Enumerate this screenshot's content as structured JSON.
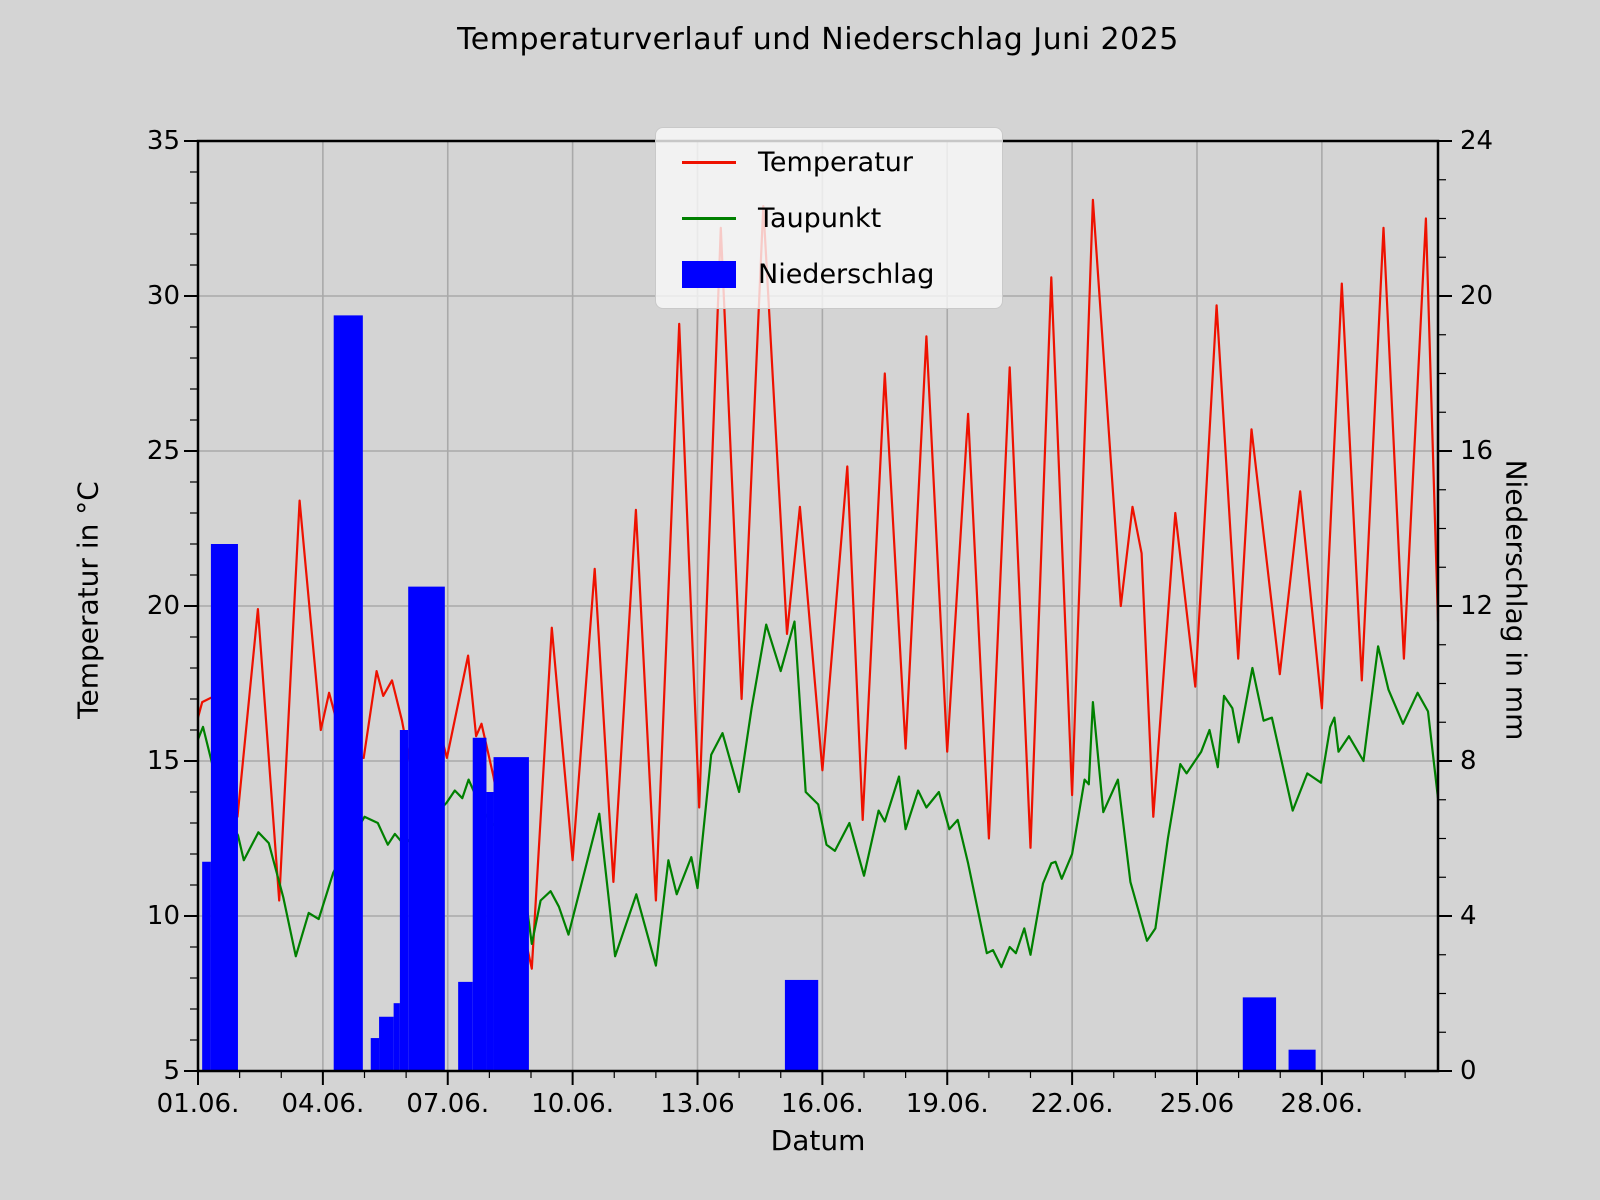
{
  "title": "Temperaturverlauf und Niederschlag Juni 2025",
  "colors": {
    "background": "#d4d4d4",
    "grid": "#a9a9a9",
    "spine": "#000000",
    "temperature": "#ee1100",
    "dewpoint": "#008000",
    "precipitation": "#0000ff",
    "legend_bg": "rgba(249,249,249,0.8)"
  },
  "axes": {
    "x": {
      "label": "Datum",
      "range_days": [
        1,
        30.79
      ],
      "major_ticks": [
        {
          "day": 1,
          "label": "01.06."
        },
        {
          "day": 4,
          "label": "04.06."
        },
        {
          "day": 7,
          "label": "07.06."
        },
        {
          "day": 10,
          "label": "10.06."
        },
        {
          "day": 13,
          "label": "13.06"
        },
        {
          "day": 16,
          "label": "16.06."
        },
        {
          "day": 19,
          "label": "19.06."
        },
        {
          "day": 22,
          "label": "22.06."
        },
        {
          "day": 25,
          "label": "25.06"
        },
        {
          "day": 28,
          "label": "28.06."
        }
      ],
      "minor_tick_step_days": 1
    },
    "y_left": {
      "label": "Temperatur in °C",
      "range": [
        5,
        35
      ],
      "major_ticks": [
        5,
        10,
        15,
        20,
        25,
        30,
        35
      ],
      "minor_tick_step": 1,
      "grid_lines": [
        10,
        15,
        20,
        25,
        30
      ]
    },
    "y_right": {
      "label": "Niederschlag in mm",
      "range": [
        0,
        24
      ],
      "major_ticks": [
        0,
        4,
        8,
        12,
        16,
        20,
        24
      ],
      "minor_tick_step": 1
    }
  },
  "legend": {
    "items": [
      {
        "label": "Temperatur",
        "type": "line",
        "color": "#ee1100"
      },
      {
        "label": "Taupunkt",
        "type": "line",
        "color": "#008000"
      },
      {
        "label": "Niederschlag",
        "type": "patch",
        "color": "#0000ff"
      }
    ]
  },
  "chart_data": {
    "type": "line+bar",
    "x_unit": "day_of_june_2025",
    "grid": true,
    "legend_position": "upper center-left",
    "series": [
      {
        "name": "Temperatur",
        "axis": "left",
        "unit": "°C",
        "color": "#ee1100",
        "points": [
          [
            1.0,
            16.4
          ],
          [
            1.1,
            16.9
          ],
          [
            1.55,
            17.2
          ],
          [
            1.95,
            13.2
          ],
          [
            2.44,
            19.9
          ],
          [
            2.95,
            10.5
          ],
          [
            3.44,
            23.4
          ],
          [
            3.95,
            16.0
          ],
          [
            4.15,
            17.2
          ],
          [
            4.55,
            15.2
          ],
          [
            4.98,
            15.1
          ],
          [
            5.29,
            17.9
          ],
          [
            5.45,
            17.1
          ],
          [
            5.66,
            17.6
          ],
          [
            5.9,
            16.3
          ],
          [
            6.15,
            14.5
          ],
          [
            6.55,
            17.3
          ],
          [
            6.98,
            15.1
          ],
          [
            7.49,
            18.4
          ],
          [
            7.68,
            15.8
          ],
          [
            7.81,
            16.2
          ],
          [
            8.1,
            14.5
          ],
          [
            8.5,
            11.5
          ],
          [
            9.02,
            8.3
          ],
          [
            9.5,
            19.3
          ],
          [
            10.0,
            11.8
          ],
          [
            10.53,
            21.2
          ],
          [
            10.98,
            11.1
          ],
          [
            11.52,
            23.1
          ],
          [
            12.0,
            10.5
          ],
          [
            12.56,
            29.1
          ],
          [
            13.04,
            13.5
          ],
          [
            13.56,
            32.2
          ],
          [
            14.06,
            17.0
          ],
          [
            14.58,
            32.9
          ],
          [
            15.15,
            19.1
          ],
          [
            15.46,
            23.2
          ],
          [
            16.0,
            14.7
          ],
          [
            16.6,
            24.5
          ],
          [
            16.97,
            13.1
          ],
          [
            17.5,
            27.5
          ],
          [
            18.0,
            15.4
          ],
          [
            18.5,
            28.7
          ],
          [
            19.0,
            15.3
          ],
          [
            19.5,
            26.2
          ],
          [
            20.0,
            12.5
          ],
          [
            20.5,
            27.7
          ],
          [
            21.0,
            12.2
          ],
          [
            21.5,
            30.6
          ],
          [
            22.0,
            13.9
          ],
          [
            22.5,
            33.1
          ],
          [
            23.17,
            20.0
          ],
          [
            23.45,
            23.2
          ],
          [
            23.67,
            21.7
          ],
          [
            23.95,
            13.2
          ],
          [
            24.48,
            23.0
          ],
          [
            24.96,
            17.4
          ],
          [
            25.47,
            29.7
          ],
          [
            25.99,
            18.3
          ],
          [
            26.31,
            25.7
          ],
          [
            26.99,
            17.8
          ],
          [
            27.48,
            23.7
          ],
          [
            28.0,
            16.7
          ],
          [
            28.48,
            30.4
          ],
          [
            28.96,
            17.6
          ],
          [
            29.48,
            32.2
          ],
          [
            29.97,
            18.3
          ],
          [
            30.5,
            32.5
          ],
          [
            30.79,
            19.5
          ]
        ]
      },
      {
        "name": "Taupunkt",
        "axis": "left",
        "unit": "°C",
        "color": "#008000",
        "points": [
          [
            1.0,
            15.7
          ],
          [
            1.12,
            16.1
          ],
          [
            1.6,
            13.5
          ],
          [
            1.96,
            12.6
          ],
          [
            2.1,
            11.8
          ],
          [
            2.45,
            12.7
          ],
          [
            2.7,
            12.35
          ],
          [
            3.05,
            10.6
          ],
          [
            3.35,
            8.7
          ],
          [
            3.66,
            10.1
          ],
          [
            3.9,
            9.9
          ],
          [
            4.25,
            11.4
          ],
          [
            4.65,
            12.4
          ],
          [
            5.0,
            13.2
          ],
          [
            5.32,
            13.0
          ],
          [
            5.56,
            12.3
          ],
          [
            5.73,
            12.65
          ],
          [
            5.95,
            12.3
          ],
          [
            6.5,
            13.0
          ],
          [
            6.97,
            13.65
          ],
          [
            7.17,
            14.05
          ],
          [
            7.35,
            13.8
          ],
          [
            7.5,
            14.4
          ],
          [
            7.83,
            13.4
          ],
          [
            8.03,
            13.05
          ],
          [
            8.22,
            12.8
          ],
          [
            8.42,
            12.3
          ],
          [
            8.6,
            11.65
          ],
          [
            8.72,
            12.1
          ],
          [
            9.02,
            9.1
          ],
          [
            9.23,
            10.5
          ],
          [
            9.47,
            10.8
          ],
          [
            9.67,
            10.3
          ],
          [
            9.9,
            9.4
          ],
          [
            10.3,
            11.5
          ],
          [
            10.64,
            13.3
          ],
          [
            11.02,
            8.7
          ],
          [
            11.53,
            10.7
          ],
          [
            12.0,
            8.4
          ],
          [
            12.3,
            11.8
          ],
          [
            12.5,
            10.7
          ],
          [
            12.85,
            11.9
          ],
          [
            13.0,
            10.9
          ],
          [
            13.33,
            15.2
          ],
          [
            13.6,
            15.9
          ],
          [
            14.0,
            14.0
          ],
          [
            14.3,
            16.7
          ],
          [
            14.65,
            19.4
          ],
          [
            15.0,
            17.9
          ],
          [
            15.33,
            19.5
          ],
          [
            15.6,
            14.0
          ],
          [
            15.9,
            13.6
          ],
          [
            16.1,
            12.3
          ],
          [
            16.3,
            12.1
          ],
          [
            16.65,
            13.0
          ],
          [
            17.0,
            11.3
          ],
          [
            17.35,
            13.4
          ],
          [
            17.5,
            13.05
          ],
          [
            17.84,
            14.5
          ],
          [
            18.0,
            12.8
          ],
          [
            18.3,
            14.05
          ],
          [
            18.5,
            13.5
          ],
          [
            18.8,
            14.0
          ],
          [
            19.05,
            12.8
          ],
          [
            19.25,
            13.1
          ],
          [
            19.5,
            11.7
          ],
          [
            19.95,
            8.8
          ],
          [
            20.1,
            8.9
          ],
          [
            20.3,
            8.35
          ],
          [
            20.5,
            9.0
          ],
          [
            20.65,
            8.8
          ],
          [
            20.85,
            9.6
          ],
          [
            21.0,
            8.75
          ],
          [
            21.3,
            11.05
          ],
          [
            21.5,
            11.7
          ],
          [
            21.6,
            11.75
          ],
          [
            21.75,
            11.2
          ],
          [
            22.0,
            12.0
          ],
          [
            22.3,
            14.4
          ],
          [
            22.4,
            14.25
          ],
          [
            22.5,
            16.9
          ],
          [
            22.75,
            13.35
          ],
          [
            23.1,
            14.4
          ],
          [
            23.4,
            11.1
          ],
          [
            23.8,
            9.2
          ],
          [
            24.0,
            9.6
          ],
          [
            24.3,
            12.5
          ],
          [
            24.6,
            14.9
          ],
          [
            24.75,
            14.6
          ],
          [
            25.1,
            15.3
          ],
          [
            25.3,
            16.0
          ],
          [
            25.5,
            14.8
          ],
          [
            25.65,
            17.1
          ],
          [
            25.85,
            16.7
          ],
          [
            26.0,
            15.6
          ],
          [
            26.33,
            18.0
          ],
          [
            26.6,
            16.3
          ],
          [
            26.8,
            16.4
          ],
          [
            27.3,
            13.4
          ],
          [
            27.65,
            14.6
          ],
          [
            27.98,
            14.3
          ],
          [
            28.2,
            16.1
          ],
          [
            28.3,
            16.4
          ],
          [
            28.4,
            15.3
          ],
          [
            28.65,
            15.8
          ],
          [
            29.0,
            15.0
          ],
          [
            29.35,
            18.7
          ],
          [
            29.6,
            17.3
          ],
          [
            29.95,
            16.2
          ],
          [
            30.3,
            17.2
          ],
          [
            30.55,
            16.6
          ],
          [
            30.79,
            13.8
          ]
        ]
      }
    ],
    "bars": {
      "name": "Niederschlag",
      "axis": "right",
      "unit": "mm",
      "color": "#0000ff",
      "intervals_day_start_end_mm": [
        [
          1.1,
          1.31,
          5.4
        ],
        [
          1.31,
          1.96,
          13.6
        ],
        [
          4.26,
          4.96,
          19.5
        ],
        [
          5.15,
          5.35,
          0.85
        ],
        [
          5.35,
          5.7,
          1.4
        ],
        [
          5.7,
          5.85,
          1.75
        ],
        [
          5.85,
          6.05,
          8.8
        ],
        [
          6.05,
          6.93,
          12.5
        ],
        [
          7.25,
          7.6,
          2.3
        ],
        [
          7.6,
          7.93,
          8.6
        ],
        [
          7.93,
          8.1,
          7.2
        ],
        [
          8.1,
          8.95,
          8.1
        ],
        [
          15.1,
          15.9,
          2.35
        ],
        [
          26.1,
          26.9,
          1.9
        ],
        [
          27.2,
          27.85,
          0.55
        ]
      ]
    }
  }
}
